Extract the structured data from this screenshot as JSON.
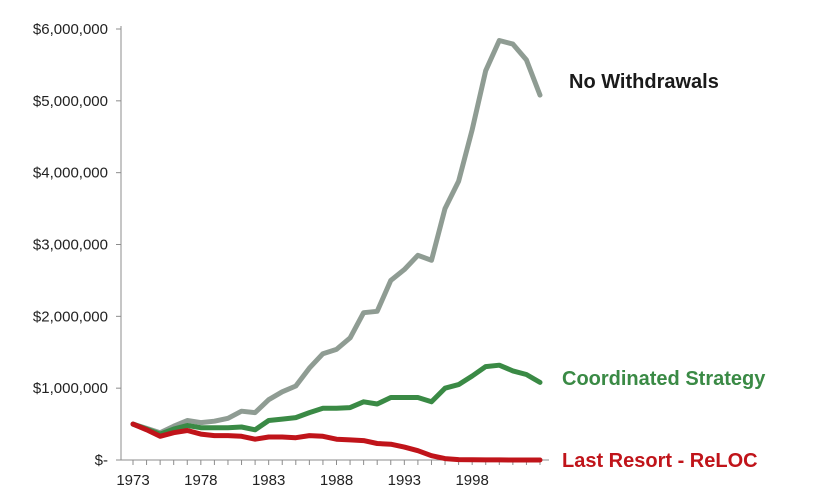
{
  "chart_data": {
    "type": "line",
    "title": "",
    "xlabel": "",
    "ylabel": "",
    "x": [
      1973,
      1974,
      1975,
      1976,
      1977,
      1978,
      1979,
      1980,
      1981,
      1982,
      1983,
      1984,
      1985,
      1986,
      1987,
      1988,
      1989,
      1990,
      1991,
      1992,
      1993,
      1994,
      1995,
      1996,
      1997,
      1998,
      1999,
      2000,
      2001,
      2002,
      2003
    ],
    "xlim": [
      1973,
      2003
    ],
    "xticks": [
      1973,
      1978,
      1983,
      1988,
      1993,
      1998
    ],
    "xtick_labels": [
      "1973",
      "1978",
      "1983",
      "1988",
      "1993",
      "1998"
    ],
    "ylim": [
      0,
      6000000
    ],
    "yticks": [
      0,
      1000000,
      2000000,
      3000000,
      4000000,
      5000000,
      6000000
    ],
    "ytick_labels": [
      "$-",
      "$1,000,000",
      "$2,000,000",
      "$3,000,000",
      "$4,000,000",
      "$5,000,000",
      "$6,000,000"
    ],
    "grid": false,
    "series": [
      {
        "name": "No Withdrawals",
        "color": "#8f9c93",
        "values": [
          500000,
          440000,
          380000,
          470000,
          550000,
          520000,
          540000,
          580000,
          680000,
          660000,
          840000,
          950000,
          1030000,
          1280000,
          1480000,
          1540000,
          1700000,
          2050000,
          2070000,
          2500000,
          2650000,
          2850000,
          2780000,
          3500000,
          3880000,
          4600000,
          5420000,
          5840000,
          5790000,
          5570000,
          5080000
        ]
      },
      {
        "name": "Coordinated Strategy",
        "color": "#3a8a45",
        "values": [
          500000,
          430000,
          360000,
          430000,
          480000,
          450000,
          450000,
          450000,
          460000,
          420000,
          550000,
          570000,
          590000,
          660000,
          720000,
          720000,
          730000,
          810000,
          780000,
          870000,
          870000,
          870000,
          810000,
          1000000,
          1050000,
          1170000,
          1300000,
          1320000,
          1240000,
          1190000,
          1080000
        ]
      },
      {
        "name": "Last Resort - ReLOC",
        "color": "#c0141a",
        "values": [
          500000,
          420000,
          330000,
          380000,
          410000,
          360000,
          340000,
          340000,
          330000,
          290000,
          320000,
          320000,
          310000,
          340000,
          330000,
          290000,
          280000,
          270000,
          230000,
          220000,
          180000,
          130000,
          60000,
          20000,
          5000,
          3000,
          2000,
          1000,
          0,
          0,
          0
        ]
      }
    ]
  }
}
